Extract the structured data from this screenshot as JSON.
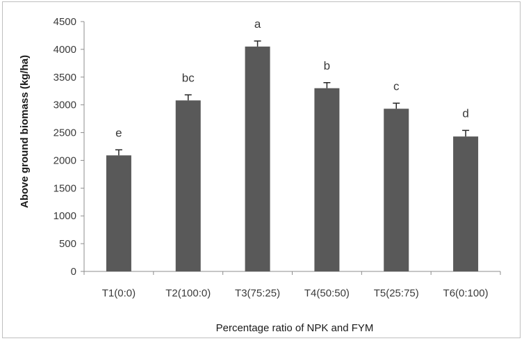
{
  "chart_data": {
    "type": "bar",
    "title": "",
    "xlabel": "Percentage ratio of NPK and FYM",
    "ylabel": "Above ground biomass (kg/ha)",
    "ylim": [
      0,
      4500
    ],
    "yticks": [
      0,
      500,
      1000,
      1500,
      2000,
      2500,
      3000,
      3500,
      4000,
      4500
    ],
    "categories": [
      "T1(0:0)",
      "T2(100:0)",
      "T3(75:25)",
      "T4(50:50)",
      "T5(25:75)",
      "T6(0:100)"
    ],
    "values": [
      2090,
      3080,
      4050,
      3300,
      2930,
      2430
    ],
    "error_upper": [
      100,
      100,
      100,
      100,
      100,
      110
    ],
    "significance_letters": [
      "e",
      "bc",
      "a",
      "b",
      "c",
      "d"
    ],
    "bar_color": "#595959",
    "grid": false,
    "legend": "none"
  }
}
